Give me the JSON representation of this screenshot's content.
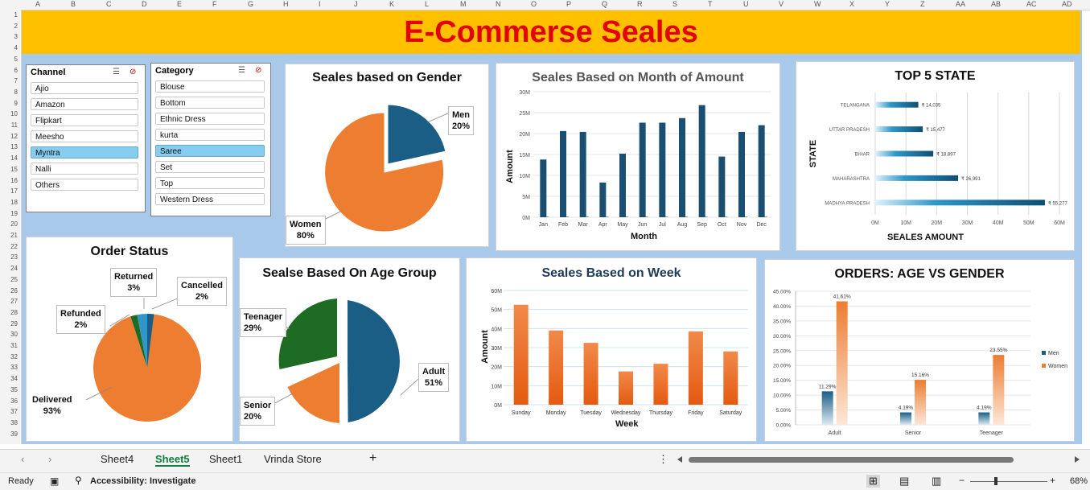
{
  "columns": [
    "A",
    "B",
    "C",
    "D",
    "E",
    "F",
    "G",
    "H",
    "I",
    "J",
    "K",
    "L",
    "M",
    "N",
    "O",
    "P",
    "Q",
    "R",
    "S",
    "T",
    "U",
    "V",
    "W",
    "X",
    "Y",
    "Z",
    "AA",
    "AB",
    "AC",
    "AD"
  ],
  "rows": [
    "1",
    "2",
    "3",
    "4",
    "5",
    "6",
    "7",
    "8",
    "9",
    "10",
    "11",
    "12",
    "13",
    "14",
    "15",
    "16",
    "17",
    "18",
    "19",
    "20",
    "21",
    "22",
    "23",
    "24",
    "25",
    "26",
    "27",
    "28",
    "29",
    "30",
    "31",
    "32",
    "33",
    "34",
    "35",
    "36",
    "37",
    "38",
    "39"
  ],
  "banner": {
    "title": "E-Commerse Seales",
    "bg": "#ffc000",
    "color": "#e20000"
  },
  "channel_slicer": {
    "title": "Channel",
    "items": [
      "Ajio",
      "Amazon",
      "Flipkart",
      "Meesho",
      "Myntra",
      "Nalli",
      "Others"
    ],
    "selected": "Myntra"
  },
  "category_slicer": {
    "title": "Category",
    "items": [
      "Blouse",
      "Bottom",
      "Ethnic Dress",
      "kurta",
      "Saree",
      "Set",
      "Top",
      "Western Dress"
    ],
    "selected": "Saree"
  },
  "gender": {
    "title": "Seales based on Gender",
    "men_label": "Men",
    "men_pct": "20%",
    "women_label": "Women",
    "women_pct": "80%"
  },
  "month": {
    "title": "Seales Based on Month of Amount",
    "xlabel": "Month",
    "ylabel": "Amount"
  },
  "top5": {
    "title": "TOP 5 STATE",
    "xlabel": "SEALES AMOUNT",
    "ylabel": "STATE"
  },
  "order_status": {
    "title": "Order Status",
    "returned": "Returned",
    "returned_pct": "3%",
    "cancelled": "Cancelled",
    "cancelled_pct": "2%",
    "refunded": "Refunded",
    "refunded_pct": "2%",
    "delivered": "Delivered",
    "delivered_pct": "93%"
  },
  "age": {
    "title": "Sealse Based On Age Group",
    "teen": "Teenager",
    "teen_pct": "29%",
    "senior": "Senior",
    "senior_pct": "20%",
    "adult": "Adult",
    "adult_pct": "51%"
  },
  "week": {
    "title": "Seales Based on Week",
    "xlabel": "Week",
    "ylabel": "Amount"
  },
  "agegender": {
    "title": "ORDERS: AGE VS GENDER"
  },
  "sheet_tabs": [
    "Sheet4",
    "Sheet5",
    "Sheet1",
    "Vrinda Store"
  ],
  "active_tab": "Sheet5",
  "status": {
    "ready": "Ready",
    "accessibility": "Accessibility: Investigate",
    "zoom": "68%"
  },
  "colors": {
    "orange": "#ed7d31",
    "navy": "#1a5e86",
    "green": "#1e6b23",
    "teal": "#2f97c9",
    "dashboard_bg": "#a9c9ea"
  },
  "chart_data": [
    {
      "type": "pie",
      "title": "Seales based on Gender",
      "categories": [
        "Men",
        "Women"
      ],
      "values": [
        20,
        80
      ]
    },
    {
      "type": "bar",
      "title": "Seales Based on Month of Amount",
      "xlabel": "Month",
      "ylabel": "Amount",
      "categories": [
        "Jan",
        "Feb",
        "Mar",
        "Apr",
        "May",
        "Jun",
        "Jul",
        "Aug",
        "Sep",
        "Oct",
        "Nov",
        "Dec"
      ],
      "values": [
        13.8,
        20.6,
        20.4,
        8.3,
        15.2,
        22.6,
        22.6,
        23.7,
        26.8,
        14.5,
        20.4,
        22.0
      ],
      "ylim": [
        0,
        30
      ],
      "yticks": [
        "0M",
        "5M",
        "10M",
        "15M",
        "20M",
        "25M",
        "30M"
      ]
    },
    {
      "type": "bar",
      "title": "TOP 5 STATE",
      "orientation": "horizontal",
      "xlabel": "SEALES AMOUNT",
      "ylabel": "STATE",
      "categories": [
        "TELANGANA",
        "UTTAR PRADESH",
        "BIHAR",
        "MAHARASHTRA",
        "MADHYA PRADESH"
      ],
      "values": [
        14035,
        15477,
        18897,
        26991,
        55277
      ],
      "value_labels": [
        "₹ 14,035",
        "₹ 15,477",
        "₹ 18,897",
        "₹ 26,991",
        "₹ 55,277"
      ],
      "xticks": [
        "0M",
        "10M",
        "20M",
        "30M",
        "40M",
        "50M",
        "60M"
      ]
    },
    {
      "type": "pie",
      "title": "Order Status",
      "categories": [
        "Delivered",
        "Refunded",
        "Returned",
        "Cancelled"
      ],
      "values": [
        93,
        2,
        3,
        2
      ]
    },
    {
      "type": "pie",
      "title": "Sealse Based On Age Group",
      "categories": [
        "Adult",
        "Senior",
        "Teenager"
      ],
      "values": [
        51,
        20,
        29
      ]
    },
    {
      "type": "bar",
      "title": "Seales Based on Week",
      "xlabel": "Week",
      "ylabel": "Amount",
      "categories": [
        "Sunday",
        "Monday",
        "Tuesday",
        "Wednesday",
        "Thursday",
        "Friday",
        "Saturday"
      ],
      "values": [
        52.5,
        39,
        32.5,
        17.5,
        21.5,
        38.5,
        28
      ],
      "ylim": [
        0,
        60
      ],
      "yticks": [
        "0M",
        "10M",
        "20M",
        "30M",
        "40M",
        "50M",
        "60M"
      ]
    },
    {
      "type": "bar",
      "title": "ORDERS: AGE VS GENDER",
      "categories": [
        "Adult",
        "Senior",
        "Teenager"
      ],
      "series": [
        {
          "name": "Men",
          "values": [
            11.29,
            4.19,
            4.19
          ],
          "labels": [
            "11.29%",
            "4.19%",
            "4.19%"
          ]
        },
        {
          "name": "Women",
          "values": [
            41.61,
            15.16,
            23.55
          ],
          "labels": [
            "41.61%",
            "15.16%",
            "23.55%"
          ]
        }
      ],
      "ylim": [
        0,
        45
      ],
      "yticks": [
        "0.00%",
        "5.00%",
        "10.00%",
        "15.00%",
        "20.00%",
        "25.00%",
        "30.00%",
        "35.00%",
        "40.00%",
        "45.00%"
      ]
    }
  ]
}
